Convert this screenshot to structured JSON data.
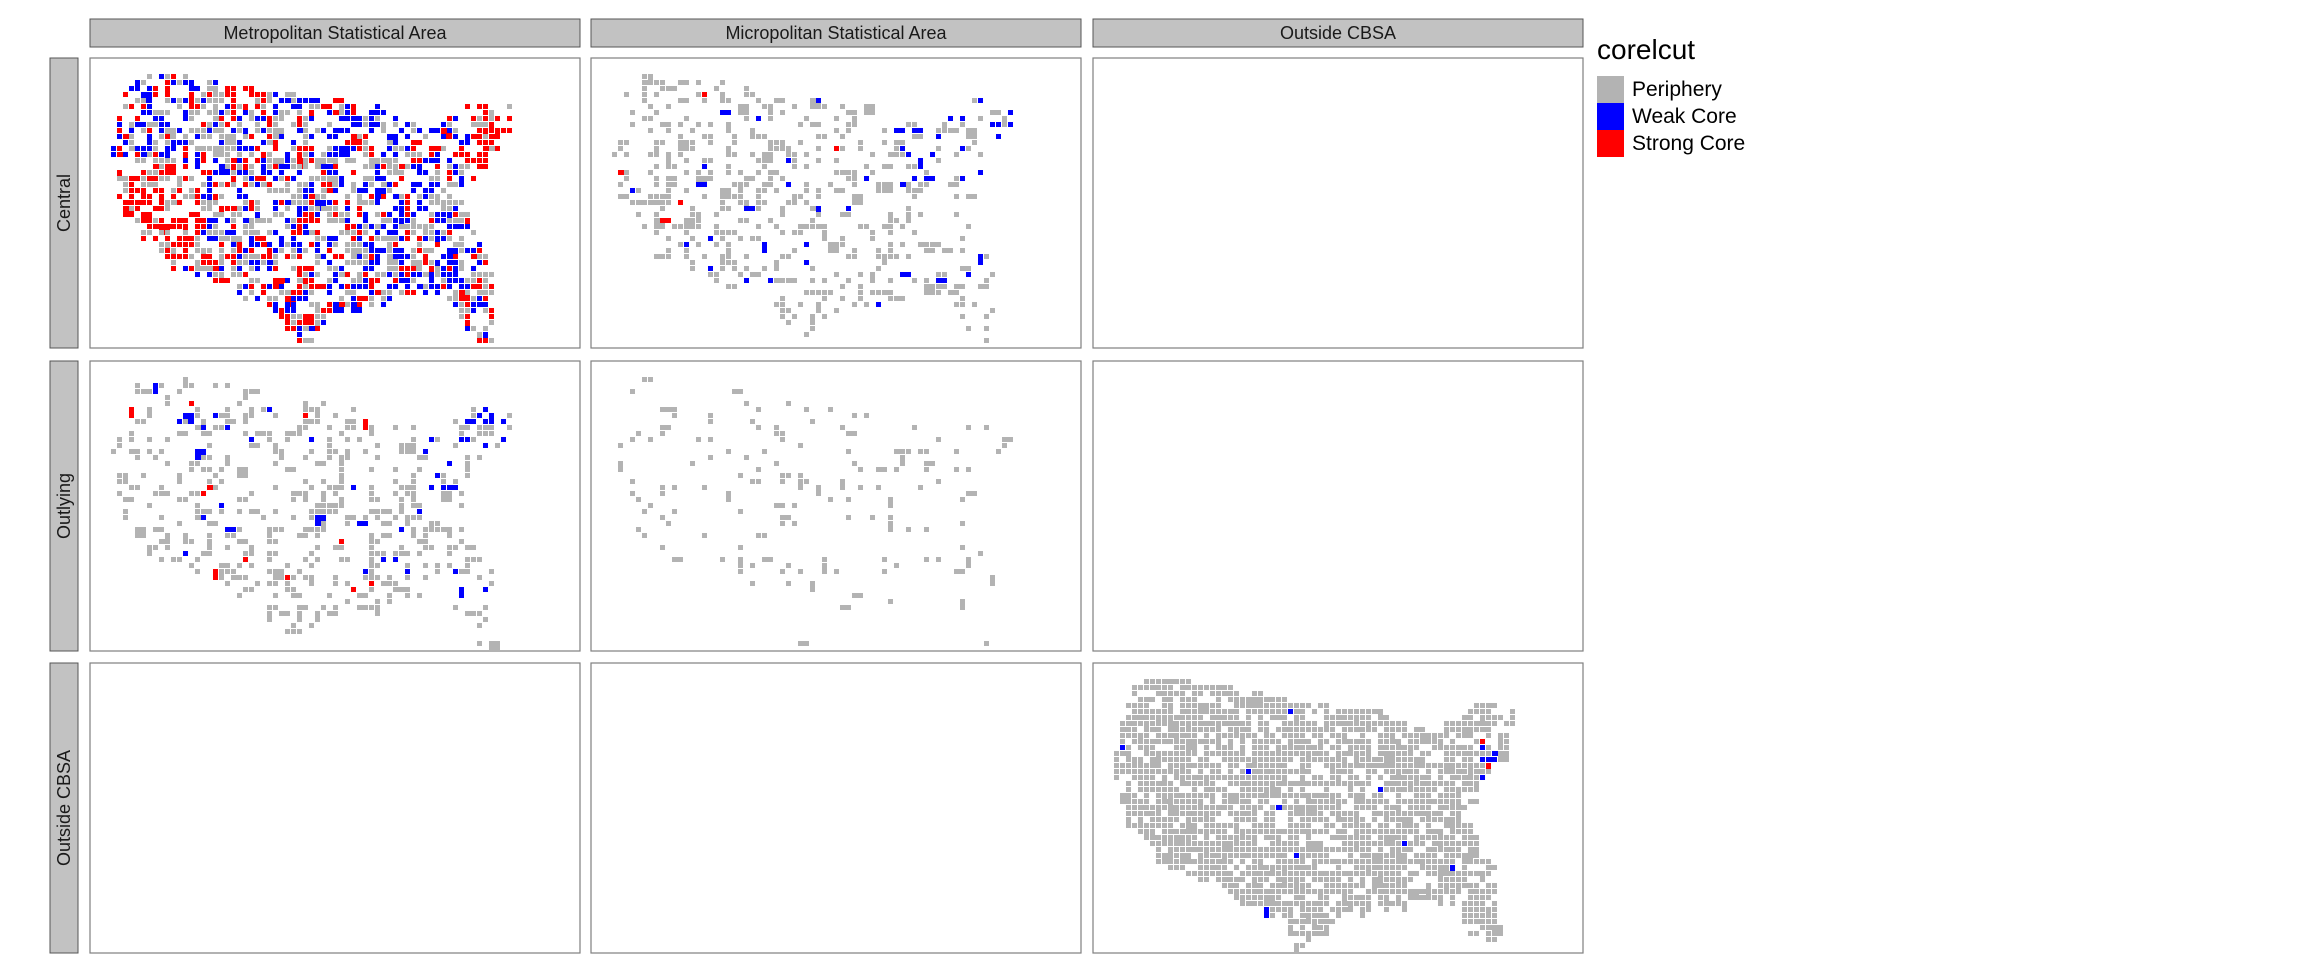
{
  "columns": [
    {
      "label": "Metropolitan Statistical Area"
    },
    {
      "label": "Micropolitan Statistical Area"
    },
    {
      "label": "Outside CBSA"
    }
  ],
  "rows": [
    {
      "label": "Central"
    },
    {
      "label": "Outlying"
    },
    {
      "label": "Outside CBSA"
    }
  ],
  "legend": {
    "title": "corelcut",
    "items": [
      {
        "label": "Periphery",
        "color": "#b3b3b3"
      },
      {
        "label": "Weak Core",
        "color": "#0000ff"
      },
      {
        "label": "Strong Core",
        "color": "#ff0000"
      }
    ]
  },
  "panels": [
    {
      "row": 0,
      "col": 0,
      "filled": true,
      "style": "metro_central",
      "density": 0.55
    },
    {
      "row": 0,
      "col": 1,
      "filled": true,
      "style": "micro_central",
      "density": 0.22
    },
    {
      "row": 0,
      "col": 2,
      "filled": false
    },
    {
      "row": 1,
      "col": 0,
      "filled": true,
      "style": "metro_outlying",
      "density": 0.22
    },
    {
      "row": 1,
      "col": 1,
      "filled": true,
      "style": "micro_outlying",
      "density": 0.06
    },
    {
      "row": 1,
      "col": 2,
      "filled": false
    },
    {
      "row": 2,
      "col": 0,
      "filled": false
    },
    {
      "row": 2,
      "col": 1,
      "filled": false
    },
    {
      "row": 2,
      "col": 2,
      "filled": true,
      "style": "outside",
      "density": 0.75
    }
  ]
}
